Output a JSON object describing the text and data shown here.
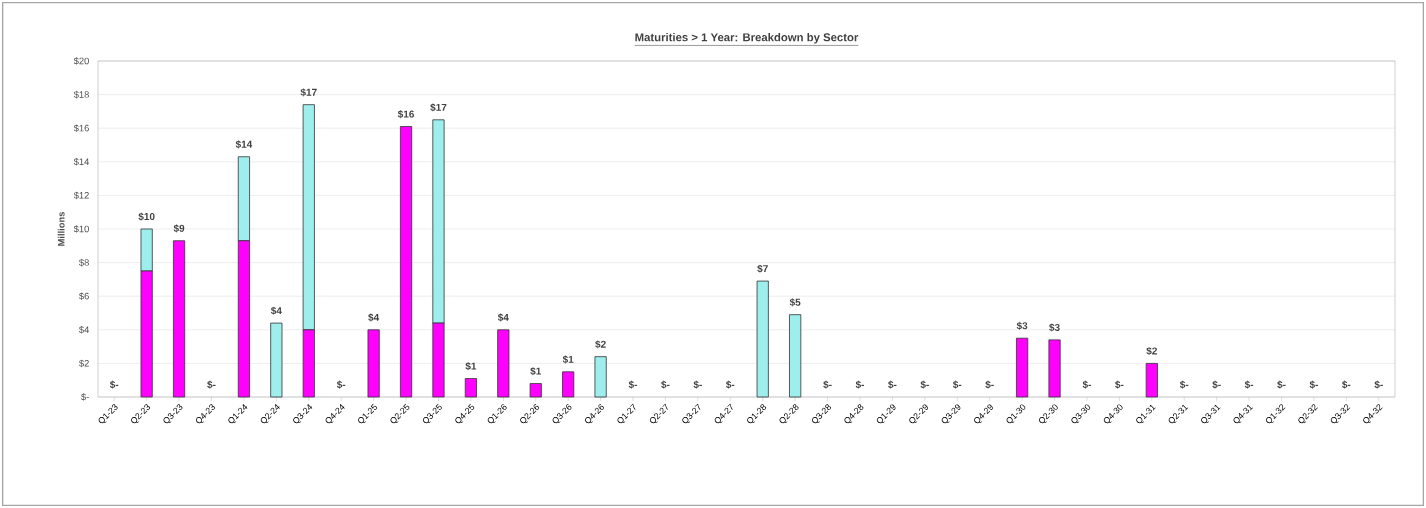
{
  "chart_data": {
    "type": "bar",
    "title": "Maturities > 1 Year: Breakdown by Sector",
    "ylabel": "Millions",
    "categories": [
      "Q1-23",
      "Q2-23",
      "Q3-23",
      "Q4-23",
      "Q1-24",
      "Q2-24",
      "Q3-24",
      "Q4-24",
      "Q1-25",
      "Q2-25",
      "Q3-25",
      "Q4-25",
      "Q1-26",
      "Q2-26",
      "Q3-26",
      "Q4-26",
      "Q1-27",
      "Q2-27",
      "Q3-27",
      "Q4-27",
      "Q1-28",
      "Q2-28",
      "Q3-28",
      "Q4-28",
      "Q1-29",
      "Q2-29",
      "Q3-29",
      "Q4-29",
      "Q1-30",
      "Q2-30",
      "Q3-30",
      "Q4-30",
      "Q1-31",
      "Q2-31",
      "Q3-31",
      "Q4-31",
      "Q1-32",
      "Q2-32",
      "Q3-32",
      "Q4-32"
    ],
    "series": [
      {
        "color": "#ff00ff",
        "values": [
          0,
          7.5,
          9.3,
          0,
          9.3,
          0,
          4.0,
          0,
          4.0,
          16.1,
          4.4,
          1.1,
          4.0,
          0.8,
          1.5,
          0,
          0,
          0,
          0,
          0,
          0,
          0,
          0,
          0,
          0,
          0,
          0,
          0,
          3.5,
          3.4,
          0,
          0,
          2.0,
          0,
          0,
          0,
          0,
          0,
          0,
          0
        ]
      },
      {
        "color": "#9eeeee",
        "values": [
          0,
          2.5,
          0,
          0,
          5.0,
          4.4,
          13.4,
          0,
          0,
          0,
          12.1,
          0,
          0,
          0,
          0,
          2.4,
          0,
          0,
          0,
          0,
          6.9,
          4.9,
          0,
          0,
          0,
          0,
          0,
          0,
          0,
          0,
          0,
          0,
          0,
          0,
          0,
          0,
          0,
          0,
          0,
          0
        ]
      }
    ],
    "stacked": true,
    "totals": [
      "$-",
      "$10",
      "$9",
      "$-",
      "$14",
      "$4",
      "$17",
      "$-",
      "$4",
      "$16",
      "$17",
      "$1",
      "$4",
      "$1",
      "$1",
      "$2",
      "$-",
      "$-",
      "$-",
      "$-",
      "$7",
      "$5",
      "$-",
      "$-",
      "$-",
      "$-",
      "$-",
      "$-",
      "$3",
      "$3",
      "$-",
      "$-",
      "$2",
      "$-",
      "$-",
      "$-",
      "$-",
      "$-",
      "$-",
      "$-"
    ],
    "ylim": [
      0,
      20
    ],
    "yticks": [
      {
        "value": 0,
        "label": "$-"
      },
      {
        "value": 2,
        "label": "$2"
      },
      {
        "value": 4,
        "label": "$4"
      },
      {
        "value": 6,
        "label": "$6"
      },
      {
        "value": 8,
        "label": "$8"
      },
      {
        "value": 10,
        "label": "$10"
      },
      {
        "value": 12,
        "label": "$12"
      },
      {
        "value": 14,
        "label": "$14"
      },
      {
        "value": 16,
        "label": "$16"
      },
      {
        "value": 18,
        "label": "$18"
      },
      {
        "value": 20,
        "label": "$20"
      }
    ],
    "grid": "y"
  }
}
